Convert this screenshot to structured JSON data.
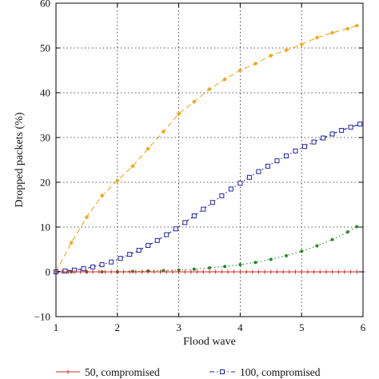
{
  "chart_data": {
    "type": "line",
    "xlabel": "Flood wave",
    "ylabel": "Dropped packets (%)",
    "xlim": [
      1,
      6
    ],
    "ylim": [
      -10,
      60
    ],
    "xticks": [
      1,
      2,
      3,
      4,
      5,
      6
    ],
    "yticks": [
      -10,
      0,
      10,
      20,
      30,
      40,
      50,
      60
    ],
    "grid": true,
    "legend_position": "bottom",
    "series": [
      {
        "name": "50, compromised",
        "color": "#d62728",
        "marker": "plus",
        "dash": "solid",
        "x": [
          1.0,
          1.1,
          1.2,
          1.3,
          1.4,
          1.5,
          1.6,
          1.7,
          1.8,
          1.9,
          2.0,
          2.1,
          2.2,
          2.3,
          2.4,
          2.5,
          2.6,
          2.7,
          2.8,
          2.9,
          3.0,
          3.1,
          3.2,
          3.3,
          3.4,
          3.5,
          3.6,
          3.7,
          3.8,
          3.9,
          4.0,
          4.1,
          4.2,
          4.3,
          4.4,
          4.5,
          4.6,
          4.7,
          4.8,
          4.9,
          5.0,
          5.1,
          5.2,
          5.3,
          5.4,
          5.5,
          5.6,
          5.7,
          5.8,
          5.9,
          6.0
        ],
        "y": [
          0,
          0,
          0,
          0,
          0,
          0,
          0,
          0,
          0,
          0,
          0,
          0,
          0,
          0,
          0,
          0,
          0,
          0,
          0,
          0,
          0,
          0,
          0,
          0,
          0,
          0,
          0,
          0,
          0,
          0,
          0,
          0,
          0,
          0,
          0,
          0,
          0,
          0,
          0,
          0,
          0,
          0,
          0,
          0,
          0,
          0,
          0,
          0,
          0,
          0,
          0
        ]
      },
      {
        "name": "100, compromised",
        "color": "#2222aa",
        "marker": "square",
        "dash": "dashdot",
        "x": [
          1.0,
          1.15,
          1.3,
          1.45,
          1.6,
          1.75,
          1.9,
          2.05,
          2.2,
          2.35,
          2.5,
          2.65,
          2.8,
          2.95,
          3.1,
          3.25,
          3.4,
          3.55,
          3.7,
          3.85,
          4.0,
          4.15,
          4.3,
          4.45,
          4.6,
          4.75,
          4.9,
          5.05,
          5.2,
          5.35,
          5.5,
          5.65,
          5.8,
          5.95
        ],
        "y": [
          0,
          0.2,
          0.4,
          0.7,
          1.1,
          1.6,
          2.2,
          3.0,
          3.9,
          4.8,
          5.9,
          7.0,
          8.3,
          9.6,
          11.0,
          12.5,
          14.0,
          15.5,
          17.0,
          18.5,
          19.8,
          21.1,
          22.4,
          23.6,
          24.8,
          25.9,
          27.0,
          28.0,
          29.0,
          29.9,
          30.8,
          31.6,
          32.3,
          33.0
        ]
      },
      {
        "name": "",
        "color": "#228b22",
        "marker": "dot",
        "dash": "dotted",
        "x": [
          1.0,
          1.25,
          1.5,
          1.75,
          2.0,
          2.25,
          2.5,
          2.75,
          3.0,
          3.25,
          3.5,
          3.75,
          4.0,
          4.25,
          4.5,
          4.75,
          5.0,
          5.25,
          5.5,
          5.75,
          5.9
        ],
        "y": [
          0,
          0,
          0,
          0,
          0,
          0.1,
          0.2,
          0.3,
          0.4,
          0.6,
          0.9,
          1.2,
          1.6,
          2.1,
          2.8,
          3.6,
          4.6,
          5.8,
          7.2,
          8.9,
          10.1
        ]
      },
      {
        "name": "",
        "color": "#f0a81c",
        "marker": "diamond",
        "dash": "dashed",
        "x": [
          1.0,
          1.25,
          1.5,
          1.75,
          2.0,
          2.25,
          2.5,
          2.75,
          3.0,
          3.25,
          3.5,
          3.75,
          4.0,
          4.25,
          4.5,
          4.75,
          5.0,
          5.25,
          5.5,
          5.75,
          5.9
        ],
        "y": [
          0,
          6.5,
          12.2,
          17.0,
          20.4,
          23.6,
          27.5,
          31.3,
          35.3,
          38.0,
          40.8,
          43.0,
          45.0,
          46.5,
          48.3,
          49.5,
          50.8,
          52.3,
          53.4,
          54.3,
          55.0
        ]
      }
    ]
  }
}
